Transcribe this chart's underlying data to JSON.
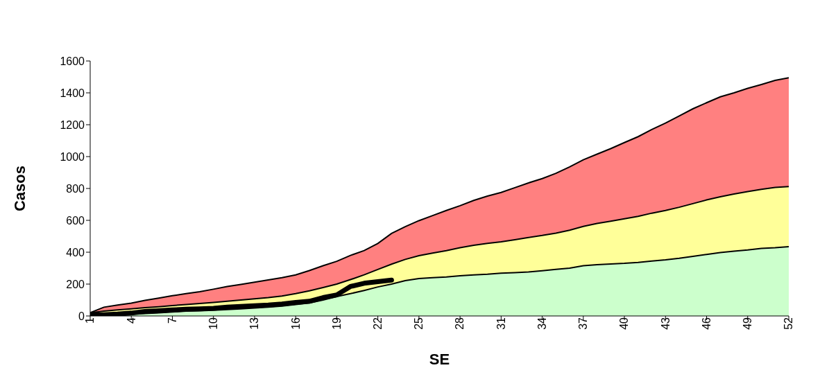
{
  "chart_data": {
    "type": "area",
    "xlabel": "SE",
    "ylabel": "Casos",
    "x": [
      1,
      2,
      3,
      4,
      5,
      6,
      7,
      8,
      9,
      10,
      11,
      12,
      13,
      14,
      15,
      16,
      17,
      18,
      19,
      20,
      21,
      22,
      23,
      24,
      25,
      26,
      27,
      28,
      29,
      30,
      31,
      32,
      33,
      34,
      35,
      36,
      37,
      38,
      39,
      40,
      41,
      42,
      43,
      44,
      45,
      46,
      47,
      48,
      49,
      50,
      51,
      52
    ],
    "series": [
      {
        "color": "#ff8080",
        "values": [
          20,
          55,
          68,
          80,
          98,
          112,
          127,
          140,
          152,
          168,
          185,
          198,
          212,
          226,
          240,
          258,
          285,
          315,
          343,
          380,
          410,
          455,
          518,
          560,
          598,
          630,
          662,
          692,
          725,
          752,
          775,
          805,
          835,
          862,
          895,
          935,
          980,
          1015,
          1050,
          1088,
          1125,
          1170,
          1210,
          1255,
          1300,
          1338,
          1375,
          1400,
          1428,
          1452,
          1478,
          1495
        ]
      },
      {
        "color": "#ffff99",
        "values": [
          20,
          30,
          38,
          45,
          52,
          58,
          65,
          72,
          78,
          85,
          92,
          100,
          108,
          115,
          125,
          140,
          158,
          178,
          200,
          228,
          258,
          292,
          325,
          355,
          378,
          395,
          410,
          428,
          443,
          455,
          465,
          478,
          492,
          505,
          520,
          538,
          562,
          580,
          595,
          610,
          625,
          645,
          662,
          682,
          705,
          728,
          748,
          765,
          780,
          795,
          806,
          812
        ]
      },
      {
        "color": "#ccffcc",
        "values": [
          5,
          8,
          10,
          12,
          15,
          20,
          25,
          30,
          33,
          36,
          40,
          45,
          50,
          55,
          62,
          72,
          82,
          100,
          122,
          140,
          160,
          182,
          200,
          222,
          235,
          240,
          245,
          252,
          258,
          262,
          268,
          272,
          276,
          284,
          292,
          300,
          315,
          322,
          326,
          330,
          336,
          345,
          352,
          362,
          374,
          386,
          398,
          406,
          414,
          424,
          428,
          435
        ]
      },
      {
        "type": "line",
        "color": "#000000",
        "x": [
          1,
          2,
          3,
          4,
          5,
          6,
          7,
          8,
          9,
          10,
          11,
          12,
          13,
          14,
          15,
          16,
          17,
          18,
          19,
          20,
          21,
          22,
          23
        ],
        "values": [
          5,
          8,
          12,
          18,
          28,
          33,
          38,
          42,
          45,
          48,
          55,
          60,
          64,
          68,
          75,
          85,
          92,
          115,
          132,
          185,
          205,
          215,
          225
        ]
      }
    ],
    "xlim": [
      1,
      52
    ],
    "xticks": [
      1,
      4,
      7,
      10,
      13,
      16,
      19,
      22,
      25,
      28,
      31,
      34,
      37,
      40,
      43,
      46,
      49,
      52
    ],
    "ylim": [
      0,
      1600
    ],
    "yticks": [
      0,
      200,
      400,
      600,
      800,
      1000,
      1200,
      1400,
      1600
    ],
    "grid": false,
    "legend": false,
    "marker": "none"
  }
}
